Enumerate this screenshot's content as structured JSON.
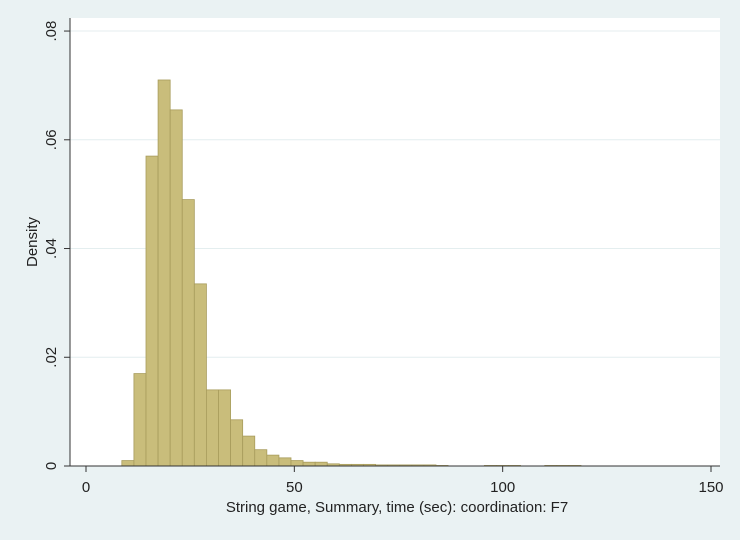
{
  "chart_data": {
    "type": "histogram",
    "x_label": "String game, Summary, time (sec): coordination: F7",
    "y_label": "Density",
    "bins": [
      8.6,
      11.5,
      14.4,
      17.3,
      20.2,
      23.1,
      26.0,
      28.9,
      31.8,
      34.7,
      37.6,
      40.5,
      43.4,
      46.3,
      49.2,
      52.1,
      55.0,
      57.9,
      60.8,
      63.7,
      66.6,
      69.5,
      72.4,
      75.3,
      78.2,
      81.1,
      84.0,
      86.9,
      89.8,
      92.7,
      95.6,
      98.5,
      101.4,
      104.3,
      107.2,
      110.1,
      113.0,
      115.9,
      118.8
    ],
    "counts": [
      0.001,
      0.017,
      0.057,
      0.071,
      0.0655,
      0.049,
      0.0335,
      0.014,
      0.014,
      0.0085,
      0.0055,
      0.003,
      0.002,
      0.0015,
      0.001,
      0.0007,
      0.0007,
      0.0004,
      0.0003,
      0.0003,
      0.0003,
      0.0002,
      0.0002,
      0.0002,
      0.0002,
      0.0002,
      0.0001,
      0,
      0,
      0,
      0.0001,
      0.0001,
      0.0001,
      0,
      0,
      0.0001,
      0.0001,
      0.0001
    ],
    "color": "#c9bd7b",
    "xlim": [
      -3.84,
      152.16
    ],
    "ylim": [
      0,
      0.0824
    ],
    "xticks": [
      0,
      50,
      100,
      150
    ],
    "yticks": [
      0,
      {
        "value": 0.02,
        "label": ".02"
      },
      {
        "value": 0.04,
        "label": ".04"
      },
      {
        "value": 0.06,
        "label": ".06"
      },
      {
        "value": 0.08,
        "label": ".08"
      }
    ],
    "grid": true
  }
}
